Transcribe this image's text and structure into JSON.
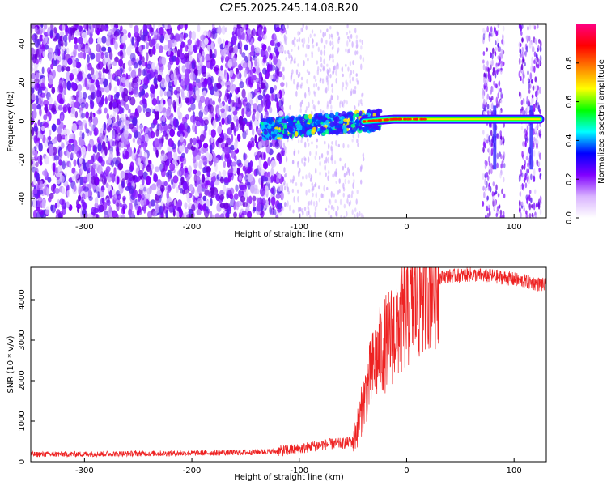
{
  "title": "C2E5.2025.245.14.08.R20",
  "chart_data": [
    {
      "type": "heatmap",
      "xlabel": "Height of straight line (km)",
      "ylabel": "Frequency (Hz)",
      "xlim": [
        -350,
        130
      ],
      "ylim": [
        -50,
        50
      ],
      "xticks": [
        -300,
        -200,
        -100,
        0,
        100
      ],
      "yticks": [
        -40,
        -20,
        0,
        20,
        40
      ],
      "colorbar": {
        "label": "Normalized spectral amplitude",
        "range": [
          0,
          1
        ],
        "ticks": [
          0.0,
          0.2,
          0.4,
          0.6,
          0.8
        ],
        "colors": [
          "#ffffff",
          "#d9b3ff",
          "#8000ff",
          "#0000ff",
          "#00ffff",
          "#00ff00",
          "#ffff00",
          "#ff8000",
          "#ff0000",
          "#ff0080"
        ]
      },
      "features": {
        "noise_region_x": [
          -350,
          -115
        ],
        "sparse_region_x": [
          -115,
          -40
        ],
        "signal_band_x": [
          -130,
          130
        ],
        "signal_band_freq_start": -4,
        "signal_band_freq_end": 1,
        "vertical_artifacts_x": [
          82,
          116
        ]
      }
    },
    {
      "type": "line",
      "xlabel": "Height of straight line (km)",
      "ylabel": "SNR (10 * v/v)",
      "xlim": [
        -350,
        130
      ],
      "ylim": [
        0,
        4800
      ],
      "xticks": [
        -300,
        -200,
        -100,
        0,
        100
      ],
      "yticks": [
        0,
        1000,
        2000,
        3000,
        4000
      ],
      "color": "#ee2222",
      "series": [
        {
          "x": [
            -350,
            -300,
            -250,
            -200,
            -150,
            -120,
            -100,
            -80,
            -60,
            -50,
            -45,
            -40,
            -35,
            -30,
            -25,
            -20,
            -15,
            -10,
            -5,
            0,
            5,
            10,
            15,
            20,
            25,
            30,
            40,
            50,
            60,
            70,
            80,
            90,
            100,
            110,
            120,
            130
          ],
          "values": [
            180,
            190,
            200,
            210,
            230,
            260,
            310,
            420,
            450,
            500,
            900,
            1500,
            2000,
            2400,
            2700,
            2900,
            3100,
            3300,
            3500,
            3700,
            3850,
            4000,
            4200,
            4400,
            4500,
            4550,
            4580,
            4600,
            4620,
            4600,
            4580,
            4550,
            4500,
            4450,
            4400,
            4350
          ]
        }
      ]
    }
  ]
}
